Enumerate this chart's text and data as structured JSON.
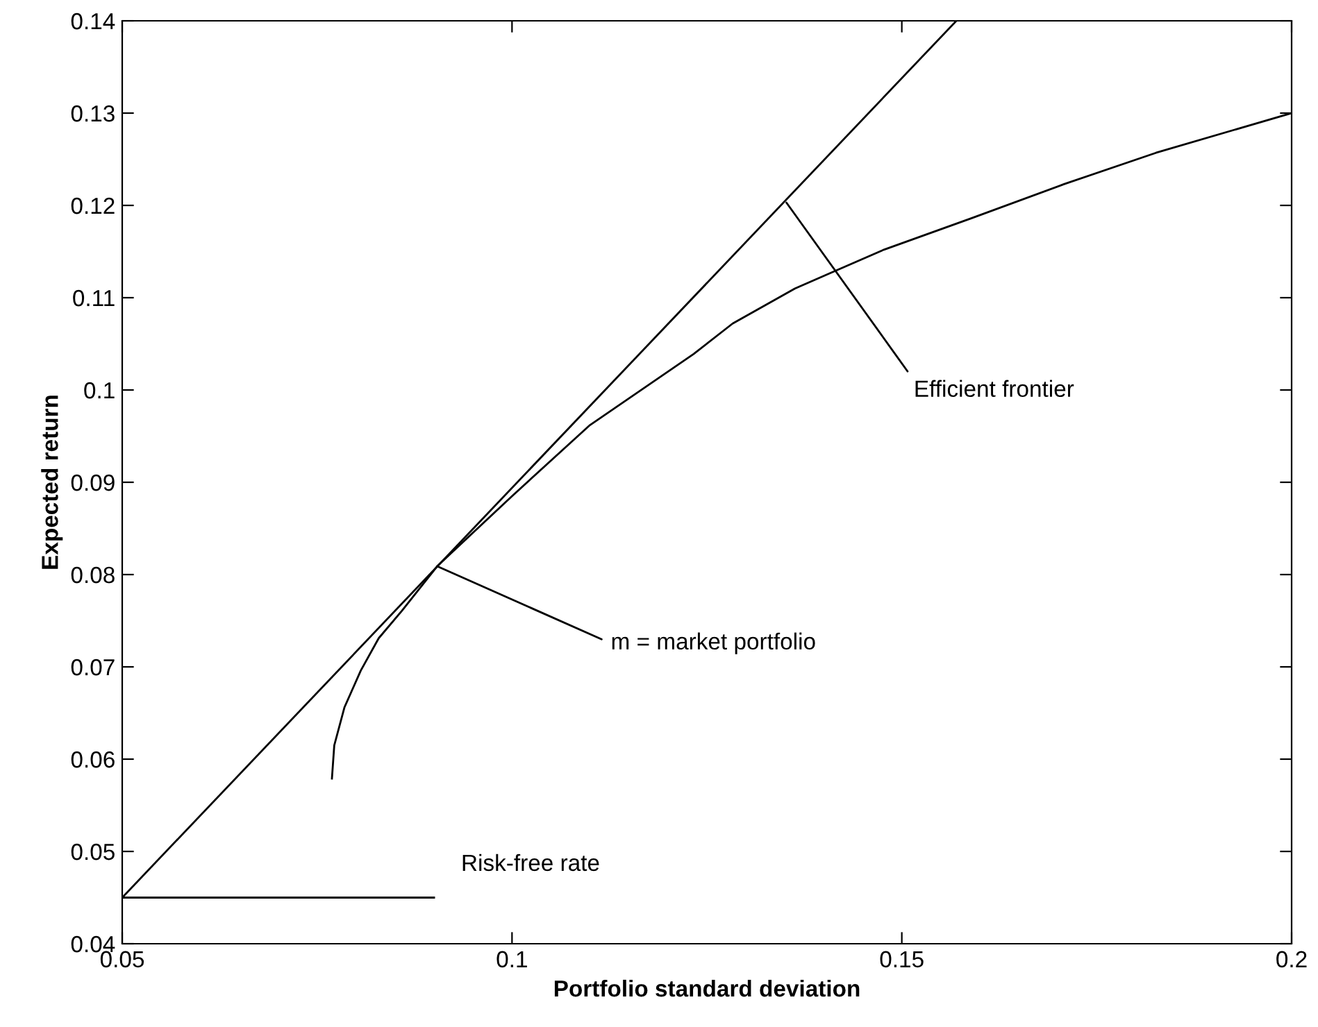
{
  "chart_data": {
    "type": "line",
    "xlabel": "Portfolio standard deviation",
    "ylabel": "Expected return",
    "xlim": [
      0.05,
      0.2
    ],
    "ylim": [
      0.04,
      0.14
    ],
    "xticks": [
      0.05,
      0.1,
      0.15,
      0.2
    ],
    "yticks": [
      0.04,
      0.05,
      0.06,
      0.07,
      0.08,
      0.09,
      0.1,
      0.11,
      0.12,
      0.13,
      0.14
    ],
    "grid": false,
    "legend": false,
    "marker": "none",
    "line_style": "solid",
    "series": [
      {
        "color": "#000000",
        "x": [
          0.0769,
          0.0772,
          0.0785,
          0.0806,
          0.0829,
          0.0859,
          0.0904,
          0.1,
          0.11,
          0.1233,
          0.1283,
          0.1363,
          0.142,
          0.1477,
          0.1589,
          0.1708,
          0.1826,
          0.2
        ],
        "values": [
          0.0579,
          0.0615,
          0.0656,
          0.0696,
          0.0731,
          0.0761,
          0.0809,
          0.0885,
          0.0962,
          0.1039,
          0.1072,
          0.111,
          0.1131,
          0.1152,
          0.1186,
          0.1223,
          0.1257,
          0.13
        ]
      },
      {
        "color": "#000000",
        "x": [
          0.05,
          0.157
        ],
        "values": [
          0.045,
          0.14
        ]
      },
      {
        "color": "#000000",
        "x": [
          0.05,
          0.09
        ],
        "values": [
          0.045,
          0.045
        ]
      }
    ],
    "annotations": [
      {
        "text": "Risk-free rate",
        "x": 0.09,
        "y": 0.045
      },
      {
        "text": "m = market portfolio",
        "x": 0.0904,
        "y": 0.0809
      },
      {
        "text": "Efficient frontier",
        "x": 0.1352,
        "y": 0.1203
      }
    ]
  }
}
